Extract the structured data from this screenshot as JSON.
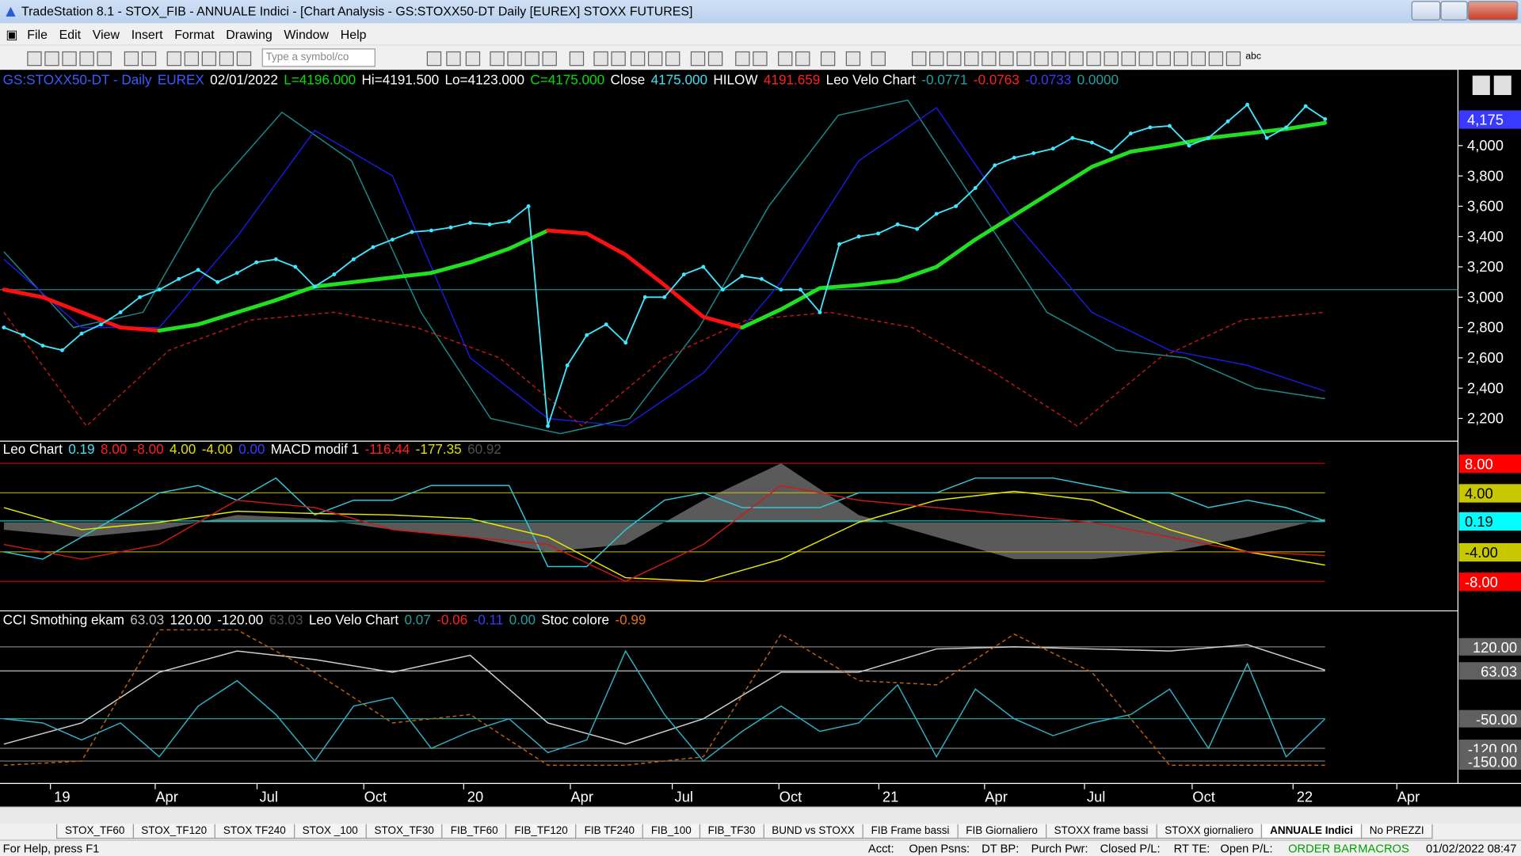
{
  "window": {
    "title": "TradeStation 8.1 - STOX_FIB - ANNUALE Indici - [Chart Analysis - GS:STOXX50-DT  Daily  [EUREX] STOXX FUTURES]"
  },
  "menu": [
    "File",
    "Edit",
    "View",
    "Insert",
    "Format",
    "Drawing",
    "Window",
    "Help"
  ],
  "symbol_box": "Type a symbol/co",
  "toolbar_text": "abc",
  "price_pane": {
    "header": [
      {
        "text": "GS:STOXX50-DT - Daily",
        "color": "#3a5cff"
      },
      {
        "text": "EUREX",
        "color": "#3a5cff"
      },
      {
        "text": "02/01/2022",
        "color": "#ffffff"
      },
      {
        "text": "L=4196.000",
        "color": "#00e000"
      },
      {
        "text": "Hi=4191.500",
        "color": "#ffffff"
      },
      {
        "text": "Lo=4123.000",
        "color": "#ffffff"
      },
      {
        "text": "C=4175.000",
        "color": "#00e000"
      },
      {
        "text": "Close",
        "color": "#ffffff"
      },
      {
        "text": "4175.000",
        "color": "#40e0f0"
      },
      {
        "text": "HILOW",
        "color": "#ffffff"
      },
      {
        "text": "4191.659",
        "color": "#ff2020"
      },
      {
        "text": "Leo Velo Chart",
        "color": "#ffffff"
      },
      {
        "text": "-0.0771",
        "color": "#20a0a0"
      },
      {
        "text": "-0.0763",
        "color": "#ff2020"
      },
      {
        "text": "-0.0733",
        "color": "#3a3aff"
      },
      {
        "text": "0.0000",
        "color": "#20a0a0"
      }
    ],
    "ylim": [
      2050,
      4500
    ],
    "yticks": [
      {
        "value": 2200,
        "label": "2,200"
      },
      {
        "value": 2400,
        "label": "2,400"
      },
      {
        "value": 2600,
        "label": "2,600"
      },
      {
        "value": 2800,
        "label": "2,800"
      },
      {
        "value": 3000,
        "label": "3,000"
      },
      {
        "value": 3200,
        "label": "3,200"
      },
      {
        "value": 3400,
        "label": "3,400"
      },
      {
        "value": 3600,
        "label": "3,600"
      },
      {
        "value": 3800,
        "label": "3,800"
      },
      {
        "value": 4000,
        "label": "4,000"
      }
    ],
    "last": {
      "value": 4175,
      "label": "4,175"
    },
    "hline": 3050,
    "close": {
      "color": "#40e8ff",
      "values": [
        2800,
        2750,
        2680,
        2650,
        2760,
        2820,
        2900,
        3000,
        3050,
        3120,
        3180,
        3100,
        3160,
        3230,
        3250,
        3200,
        3070,
        3150,
        3250,
        3330,
        3380,
        3430,
        3440,
        3460,
        3490,
        3480,
        3500,
        3600,
        2150,
        2550,
        2750,
        2820,
        2700,
        3000,
        3000,
        3150,
        3200,
        3050,
        3140,
        3120,
        3050,
        3050,
        2900,
        3350,
        3400,
        3420,
        3480,
        3450,
        3550,
        3600,
        3720,
        3870,
        3920,
        3950,
        3980,
        4050,
        4020,
        3960,
        4080,
        4120,
        4130,
        4000,
        4050,
        4160,
        4270,
        4050,
        4120,
        4260,
        4175
      ]
    },
    "average": {
      "rising_color": "#20e020",
      "falling_color": "#ff1010",
      "values": [
        3050,
        3000,
        2900,
        2800,
        2780,
        2820,
        2900,
        2980,
        3070,
        3100,
        3130,
        3160,
        3230,
        3320,
        3440,
        3420,
        3280,
        3080,
        2870,
        2800,
        2920,
        3060,
        3080,
        3110,
        3200,
        3380,
        3540,
        3700,
        3860,
        3960,
        4000,
        4050,
        4080,
        4110,
        4150
      ]
    },
    "lines": [
      {
        "color": "#1a8a8a",
        "values": [
          3300,
          2800,
          2900,
          3700,
          4220,
          3900,
          2900,
          2200,
          2100,
          2200,
          2800,
          3600,
          4200,
          4300,
          3600,
          2900,
          2650,
          2600,
          2400,
          2330
        ]
      },
      {
        "color": "#1a1ae0",
        "values": [
          3250,
          2800,
          2800,
          3400,
          4100,
          3800,
          2600,
          2200,
          2150,
          2500,
          3100,
          3900,
          4250,
          3500,
          2900,
          2650,
          2550,
          2380
        ]
      },
      {
        "color": "#c01818",
        "dash": true,
        "values": [
          2900,
          2150,
          2650,
          2850,
          2900,
          2800,
          2600,
          2150,
          2600,
          2850,
          2900,
          2800,
          2500,
          2150,
          2600,
          2850,
          2900
        ]
      }
    ]
  },
  "macd_pane": {
    "header": [
      {
        "text": "Leo Chart",
        "color": "#ffffff"
      },
      {
        "text": "0.19",
        "color": "#40e0f0"
      },
      {
        "text": "8.00",
        "color": "#ff2020"
      },
      {
        "text": "-8.00",
        "color": "#ff2020"
      },
      {
        "text": "4.00",
        "color": "#e0e000"
      },
      {
        "text": "-4.00",
        "color": "#e0e000"
      },
      {
        "text": "0.00",
        "color": "#3a3aff"
      },
      {
        "text": "MACD modif 1",
        "color": "#ffffff"
      },
      {
        "text": "-116.44",
        "color": "#ff2020"
      },
      {
        "text": "-177.35",
        "color": "#e0e000"
      },
      {
        "text": "60.92",
        "color": "#505050"
      }
    ],
    "ylim": [
      -12,
      11
    ],
    "levels": [
      {
        "value": 8,
        "label": "8.00",
        "color": "#ff0000",
        "text_color": "#ffffff"
      },
      {
        "value": 4,
        "label": "4.00",
        "color": "#c8c800",
        "text_color": "#000000"
      },
      {
        "value": 0.19,
        "label": "0.19",
        "color": "#00ffff",
        "text_color": "#000000"
      },
      {
        "value": -4,
        "label": "-4.00",
        "color": "#c8c800",
        "text_color": "#000000"
      },
      {
        "value": -8,
        "label": "-8.00",
        "color": "#ff0000",
        "text_color": "#ffffff"
      }
    ],
    "histogram": {
      "color": "#5a5a5a",
      "values": [
        -1,
        -2,
        -1,
        1,
        0.5,
        -1,
        -2,
        -4,
        -3,
        3,
        8,
        1,
        -2,
        -5,
        -5,
        -4,
        -2,
        0.5
      ]
    },
    "lines": [
      {
        "color": "#30c8d8",
        "values": [
          -4,
          -5,
          -2,
          1,
          4,
          5,
          3,
          6,
          1,
          3,
          3,
          5,
          5,
          5,
          -6,
          -6,
          -1,
          3,
          4,
          2,
          2,
          2,
          4,
          4,
          4,
          6,
          6,
          6,
          5,
          4,
          4,
          2,
          3,
          2,
          0.19
        ]
      },
      {
        "color": "#e8e800",
        "values": [
          2,
          -1,
          0,
          1.5,
          1.2,
          1,
          0.5,
          -2,
          -7.5,
          -8,
          -5,
          0,
          3,
          4.2,
          3,
          -1,
          -4,
          -5.8
        ]
      },
      {
        "color": "#d01818",
        "values": [
          -3,
          -5,
          -3,
          3,
          2,
          -1,
          -2,
          -3,
          -8,
          -3,
          5,
          3,
          2,
          1,
          0,
          -2,
          -4,
          -4.5
        ]
      }
    ]
  },
  "cci_pane": {
    "header": [
      {
        "text": "CCI Smothing ekam",
        "color": "#ffffff"
      },
      {
        "text": "63.03",
        "color": "#c0c0c0"
      },
      {
        "text": "120.00",
        "color": "#ffffff"
      },
      {
        "text": "-120.00",
        "color": "#ffffff"
      },
      {
        "text": "63.03",
        "color": "#505050"
      },
      {
        "text": "Leo Velo Chart",
        "color": "#ffffff"
      },
      {
        "text": "0.07",
        "color": "#20a0a0"
      },
      {
        "text": "-0.06",
        "color": "#ff2020"
      },
      {
        "text": "-0.11",
        "color": "#3a3aff"
      },
      {
        "text": "0.00",
        "color": "#20a0a0"
      },
      {
        "text": "Stoc colore",
        "color": "#ffffff"
      },
      {
        "text": "-0.99",
        "color": "#e07020"
      }
    ],
    "ylim": [
      -203,
      205
    ],
    "levels": [
      {
        "value": 120,
        "label": "120.00",
        "color": "#808080"
      },
      {
        "value": 63.03,
        "label": "63.03",
        "color": "#c0c0c0"
      },
      {
        "value": -50,
        "label": "-50.00",
        "color": "#20a0a0"
      },
      {
        "value": -120,
        "label": "-120.00",
        "color": "#808080"
      },
      {
        "value": -150,
        "label": "-150.00",
        "color": "#808080"
      }
    ],
    "lines": [
      {
        "color": "#d0d0d0",
        "values": [
          -110,
          -60,
          60,
          110,
          90,
          60,
          100,
          -60,
          -110,
          -50,
          60,
          60,
          115,
          120,
          115,
          110,
          125,
          65
        ]
      },
      {
        "color": "#c06010",
        "dash": true,
        "values": [
          -160,
          -150,
          160,
          160,
          60,
          -60,
          -40,
          -160,
          -160,
          -140,
          150,
          40,
          30,
          150,
          60,
          -160,
          -160,
          -160
        ]
      },
      {
        "color": "#30b0c0",
        "values": [
          -50,
          -60,
          -100,
          -60,
          -140,
          -20,
          40,
          -40,
          -150,
          -20,
          0,
          -120,
          -80,
          -50,
          -130,
          -100,
          110,
          -40,
          -150,
          -80,
          -20,
          -80,
          -60,
          30,
          -140,
          20,
          -50,
          -90,
          -60,
          -40,
          20,
          -120,
          80,
          -140,
          -50
        ]
      }
    ]
  },
  "x_axis": {
    "labels": [
      "19",
      "Apr",
      "Jul",
      "Oct",
      "20",
      "Apr",
      "Jul",
      "Oct",
      "21",
      "Apr",
      "Jul",
      "Oct",
      "22",
      "Apr"
    ]
  },
  "tabs": [
    "STOX_TF60",
    "STOX_TF120",
    "STOX TF240",
    "STOX _100",
    "STOX_TF30",
    "FIB_TF60",
    "FIB_TF120",
    "FIB TF240",
    "FIB_100",
    "FIB_TF30",
    "BUND vs STOXX",
    "FIB Frame bassi",
    "FIB Giornaliero",
    "STOXX frame bassi",
    "STOXX giornaliero",
    "ANNUALE Indici",
    "No PREZZI"
  ],
  "active_tab": "ANNUALE Indici",
  "status": {
    "help": "For Help, press F1",
    "fields": [
      "Acct:",
      "Open Psns:",
      "DT BP:",
      "Purch Pwr:",
      "Closed P/L:",
      "RT TE:",
      "Open P/L:"
    ],
    "order_bar": "ORDER BAR",
    "macros": "MACROS",
    "clock": "01/02/2022 08:47"
  }
}
